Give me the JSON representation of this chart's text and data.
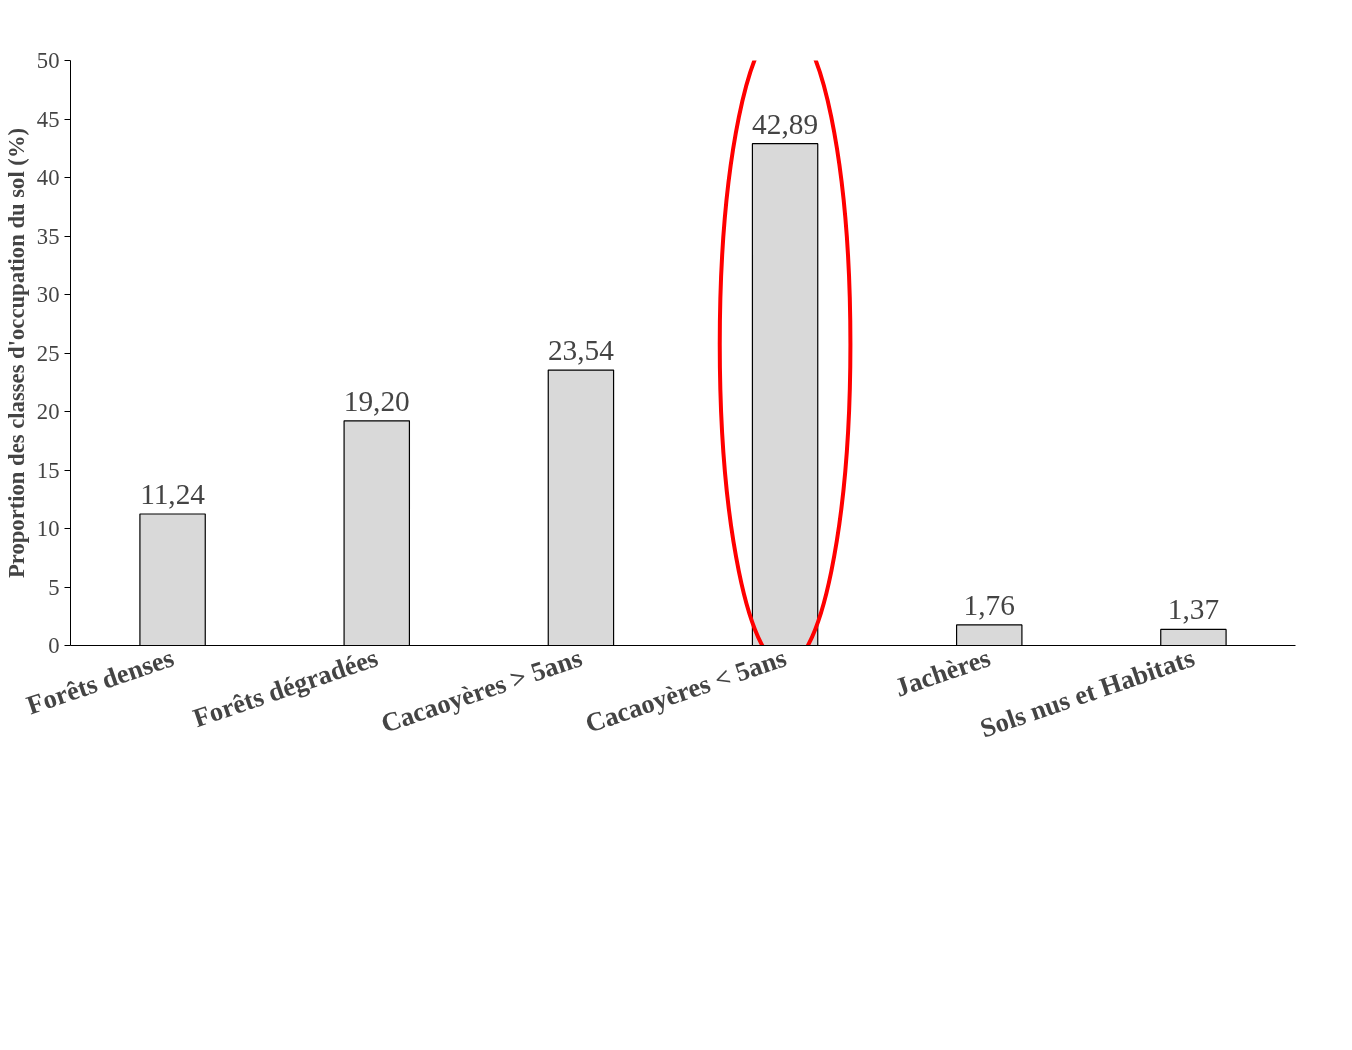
{
  "chart_data": {
    "type": "bar",
    "ylabel": "Proportion des classes d'occupation du sol (%)",
    "categories": [
      "Forêts denses",
      "Forêts dégradées",
      "Cacaoyères > 5ans",
      "Cacaoyères < 5ans",
      "Jachères",
      "Sols nus et Habitats"
    ],
    "values": [
      11.24,
      19.2,
      23.54,
      42.89,
      1.76,
      1.37
    ],
    "value_labels": [
      "11,24",
      "19,20",
      "23,54",
      "42,89",
      "1,76",
      "1,37"
    ],
    "color": "#d9d9d9",
    "ylim": [
      0,
      50
    ],
    "yticks": [
      0,
      5,
      10,
      15,
      20,
      25,
      30,
      35,
      40,
      45,
      50
    ],
    "grid": false
  }
}
